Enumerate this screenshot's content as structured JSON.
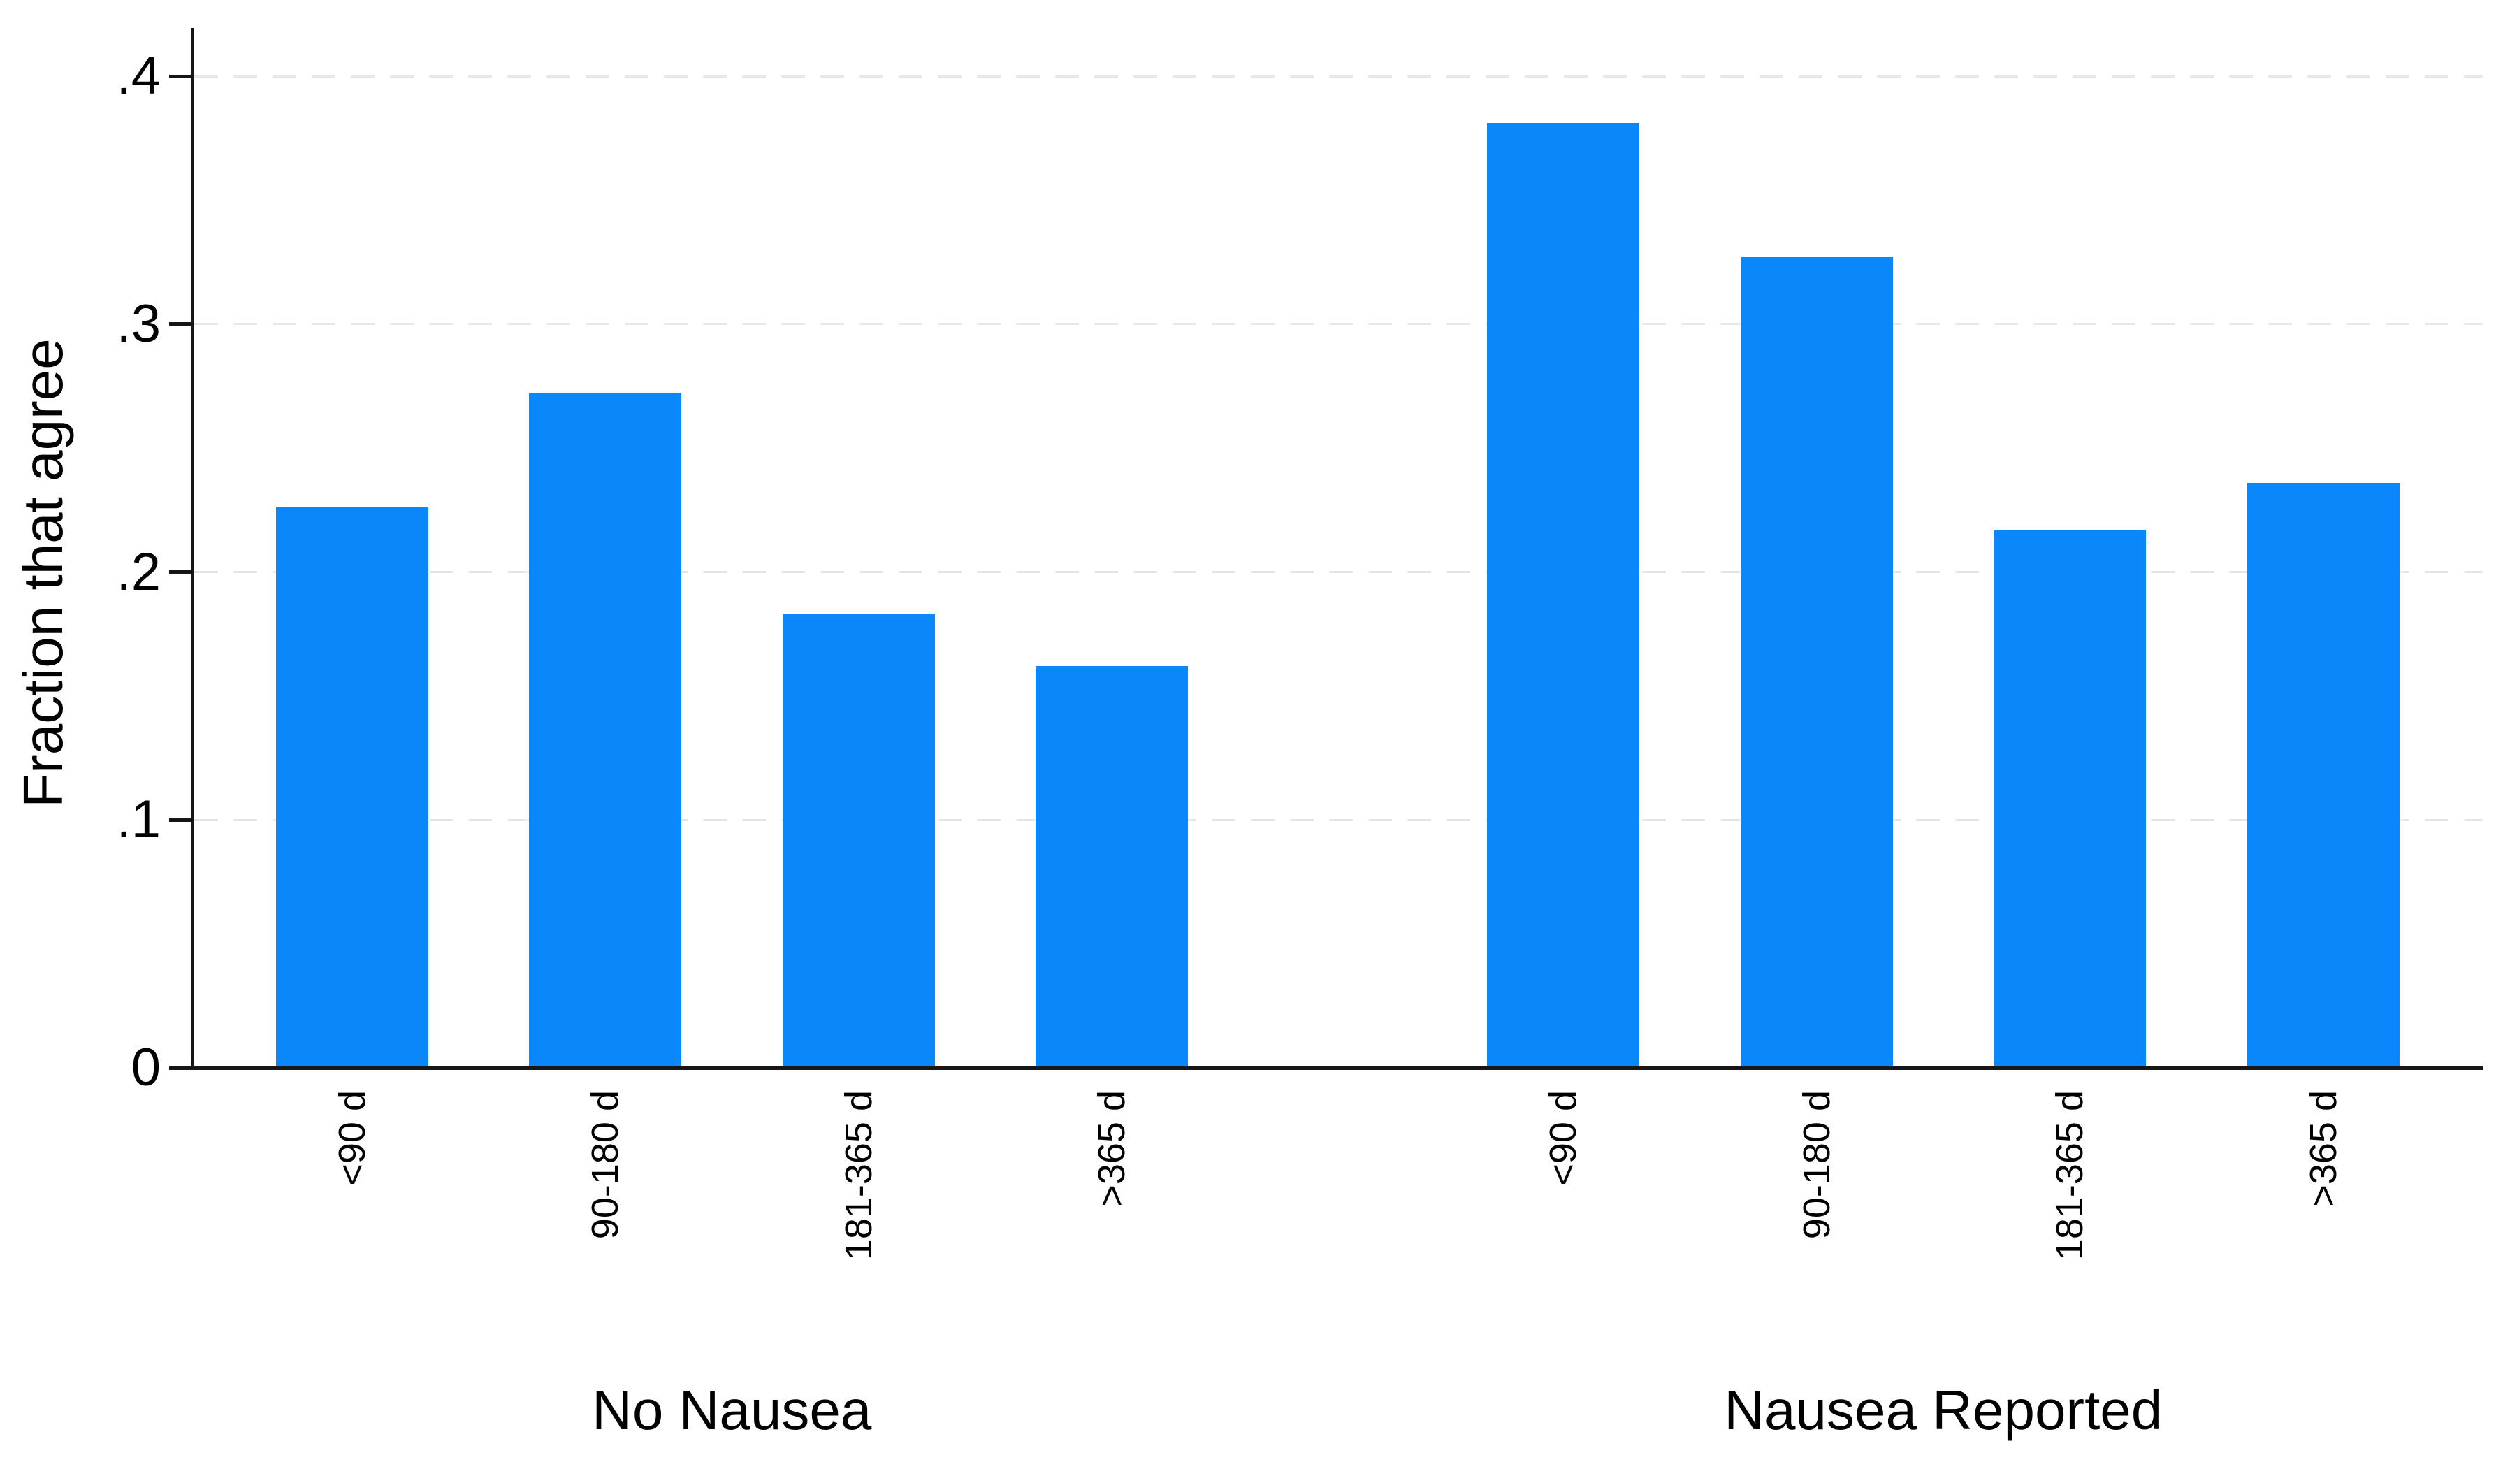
{
  "page": {
    "background": "#ffffff"
  },
  "chart_data": {
    "type": "bar",
    "title": "",
    "ylabel": "Fraction that agree",
    "xlabel": "",
    "ylim": [
      0,
      0.42
    ],
    "grid": {
      "horizontal": true,
      "style": "dashed",
      "color": "#e8e8e8"
    },
    "bar_color": "#0a87fa",
    "axis_color": "#161616",
    "text_color": "#000000",
    "yticks": [
      {
        "value": 0.0,
        "label": "0"
      },
      {
        "value": 0.1,
        "label": ".1"
      },
      {
        "value": 0.2,
        "label": ".2"
      },
      {
        "value": 0.3,
        "label": ".3"
      },
      {
        "value": 0.4,
        "label": ".4"
      }
    ],
    "categories": [
      "<90 d",
      "90-180 d",
      "181-365 d",
      ">365 d"
    ],
    "groups": [
      {
        "label": "No Nausea",
        "values": [
          0.226,
          0.272,
          0.183,
          0.162
        ]
      },
      {
        "label": "Nausea Reported",
        "values": [
          0.381,
          0.327,
          0.217,
          0.236
        ]
      }
    ],
    "legend": null
  }
}
